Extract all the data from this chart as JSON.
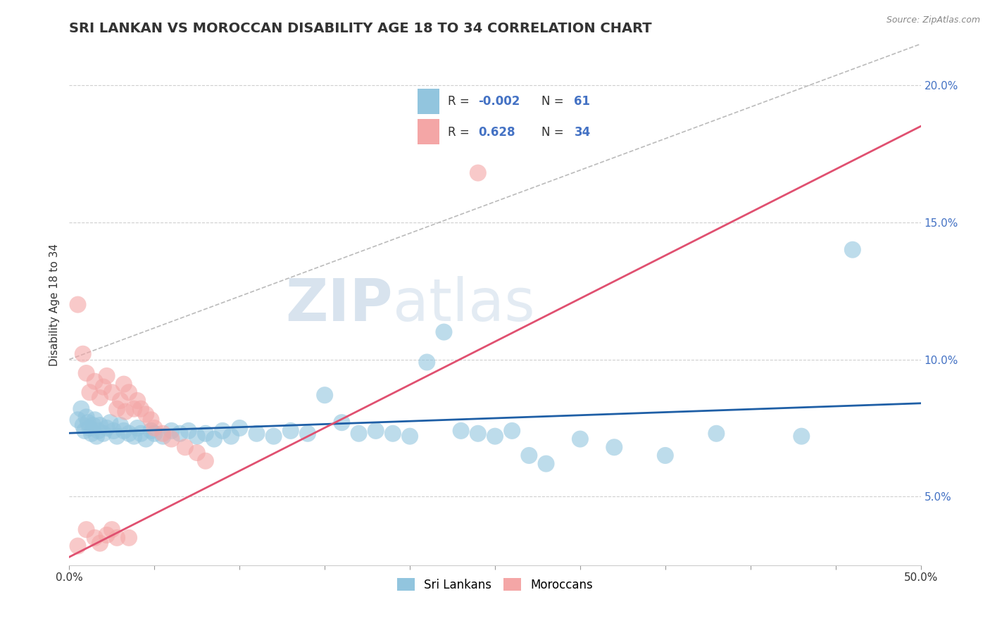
{
  "title": "SRI LANKAN VS MOROCCAN DISABILITY AGE 18 TO 34 CORRELATION CHART",
  "source": "Source: ZipAtlas.com",
  "ylabel_label": "Disability Age 18 to 34",
  "xlim": [
    0.0,
    0.5
  ],
  "ylim": [
    0.025,
    0.215
  ],
  "xticks": [
    0.0,
    0.05,
    0.1,
    0.15,
    0.2,
    0.25,
    0.3,
    0.35,
    0.4,
    0.45,
    0.5
  ],
  "yticks": [
    0.05,
    0.1,
    0.15,
    0.2
  ],
  "xticklabels_show": [
    "0.0%",
    "",
    "",
    "",
    "",
    "",
    "",
    "",
    "",
    "",
    "50.0%"
  ],
  "yticklabels": [
    "5.0%",
    "10.0%",
    "15.0%",
    "20.0%"
  ],
  "sri_lankan_color": "#92c5de",
  "moroccan_color": "#f4a6a6",
  "sri_lankan_trend_color": "#1f5fa6",
  "moroccan_trend_color": "#e05070",
  "watermark_zip": "ZIP",
  "watermark_atlas": "atlas",
  "legend_r_sri": "-0.002",
  "legend_n_sri": "61",
  "legend_r_mor": "0.628",
  "legend_n_mor": "34",
  "background_color": "#ffffff",
  "grid_color": "#d0d0d0",
  "sri_lankans": [
    [
      0.005,
      0.078
    ],
    [
      0.007,
      0.082
    ],
    [
      0.008,
      0.076
    ],
    [
      0.009,
      0.074
    ],
    [
      0.01,
      0.079
    ],
    [
      0.011,
      0.077
    ],
    [
      0.012,
      0.075
    ],
    [
      0.013,
      0.073
    ],
    [
      0.014,
      0.076
    ],
    [
      0.015,
      0.078
    ],
    [
      0.016,
      0.072
    ],
    [
      0.017,
      0.074
    ],
    [
      0.018,
      0.076
    ],
    [
      0.02,
      0.073
    ],
    [
      0.022,
      0.075
    ],
    [
      0.024,
      0.077
    ],
    [
      0.026,
      0.074
    ],
    [
      0.028,
      0.072
    ],
    [
      0.03,
      0.076
    ],
    [
      0.032,
      0.074
    ],
    [
      0.035,
      0.073
    ],
    [
      0.038,
      0.072
    ],
    [
      0.04,
      0.075
    ],
    [
      0.042,
      0.073
    ],
    [
      0.045,
      0.071
    ],
    [
      0.048,
      0.074
    ],
    [
      0.05,
      0.073
    ],
    [
      0.055,
      0.072
    ],
    [
      0.06,
      0.074
    ],
    [
      0.065,
      0.073
    ],
    [
      0.07,
      0.074
    ],
    [
      0.075,
      0.072
    ],
    [
      0.08,
      0.073
    ],
    [
      0.085,
      0.071
    ],
    [
      0.09,
      0.074
    ],
    [
      0.095,
      0.072
    ],
    [
      0.1,
      0.075
    ],
    [
      0.11,
      0.073
    ],
    [
      0.12,
      0.072
    ],
    [
      0.13,
      0.074
    ],
    [
      0.14,
      0.073
    ],
    [
      0.15,
      0.087
    ],
    [
      0.16,
      0.077
    ],
    [
      0.17,
      0.073
    ],
    [
      0.18,
      0.074
    ],
    [
      0.19,
      0.073
    ],
    [
      0.2,
      0.072
    ],
    [
      0.21,
      0.099
    ],
    [
      0.22,
      0.11
    ],
    [
      0.23,
      0.074
    ],
    [
      0.24,
      0.073
    ],
    [
      0.25,
      0.072
    ],
    [
      0.26,
      0.074
    ],
    [
      0.27,
      0.065
    ],
    [
      0.28,
      0.062
    ],
    [
      0.3,
      0.071
    ],
    [
      0.32,
      0.068
    ],
    [
      0.35,
      0.065
    ],
    [
      0.38,
      0.073
    ],
    [
      0.43,
      0.072
    ],
    [
      0.46,
      0.14
    ]
  ],
  "moroccans": [
    [
      0.005,
      0.12
    ],
    [
      0.008,
      0.102
    ],
    [
      0.01,
      0.095
    ],
    [
      0.012,
      0.088
    ],
    [
      0.015,
      0.092
    ],
    [
      0.018,
      0.086
    ],
    [
      0.02,
      0.09
    ],
    [
      0.022,
      0.094
    ],
    [
      0.025,
      0.088
    ],
    [
      0.028,
      0.082
    ],
    [
      0.03,
      0.085
    ],
    [
      0.032,
      0.091
    ],
    [
      0.033,
      0.081
    ],
    [
      0.035,
      0.088
    ],
    [
      0.038,
      0.082
    ],
    [
      0.04,
      0.085
    ],
    [
      0.042,
      0.082
    ],
    [
      0.045,
      0.08
    ],
    [
      0.048,
      0.078
    ],
    [
      0.05,
      0.075
    ],
    [
      0.055,
      0.073
    ],
    [
      0.06,
      0.071
    ],
    [
      0.068,
      0.068
    ],
    [
      0.075,
      0.066
    ],
    [
      0.08,
      0.063
    ],
    [
      0.01,
      0.038
    ],
    [
      0.015,
      0.035
    ],
    [
      0.018,
      0.033
    ],
    [
      0.022,
      0.036
    ],
    [
      0.025,
      0.038
    ],
    [
      0.028,
      0.035
    ],
    [
      0.035,
      0.035
    ],
    [
      0.24,
      0.168
    ],
    [
      0.005,
      0.032
    ]
  ],
  "moroccan_trend": [
    0.0,
    0.028,
    0.5,
    0.185
  ],
  "sri_trend_y": 0.074
}
